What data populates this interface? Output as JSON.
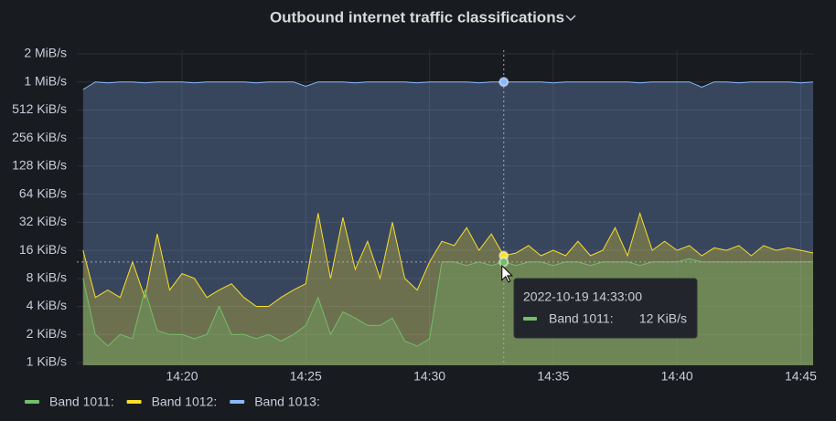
{
  "chart_data": {
    "type": "area",
    "title": "Outbound internet traffic classifications",
    "log_scale": 2,
    "grid": true,
    "x": [
      "14:16:00",
      "14:16:30",
      "14:17:00",
      "14:17:30",
      "14:18:00",
      "14:18:30",
      "14:19:00",
      "14:19:30",
      "14:20:00",
      "14:20:30",
      "14:21:00",
      "14:21:30",
      "14:22:00",
      "14:22:30",
      "14:23:00",
      "14:23:30",
      "14:24:00",
      "14:24:30",
      "14:25:00",
      "14:25:30",
      "14:26:00",
      "14:26:30",
      "14:27:00",
      "14:27:30",
      "14:28:00",
      "14:28:30",
      "14:29:00",
      "14:29:30",
      "14:30:00",
      "14:30:30",
      "14:31:00",
      "14:31:30",
      "14:32:00",
      "14:32:30",
      "14:33:00",
      "14:33:30",
      "14:34:00",
      "14:34:30",
      "14:35:00",
      "14:35:30",
      "14:36:00",
      "14:36:30",
      "14:37:00",
      "14:37:30",
      "14:38:00",
      "14:38:30",
      "14:39:00",
      "14:39:30",
      "14:40:00",
      "14:40:30",
      "14:41:00",
      "14:41:30",
      "14:42:00",
      "14:42:30",
      "14:43:00",
      "14:43:30",
      "14:44:00",
      "14:44:30",
      "14:45:00",
      "14:45:30"
    ],
    "xlim": [
      "14:15:45",
      "14:45:30"
    ],
    "xticks": [
      "14:20",
      "14:25",
      "14:30",
      "14:35",
      "14:40",
      "14:45"
    ],
    "ylim": [
      1,
      2048
    ],
    "yticks": [
      {
        "value": 1,
        "label": "1 KiB/s"
      },
      {
        "value": 2,
        "label": "2 KiB/s"
      },
      {
        "value": 4,
        "label": "4 KiB/s"
      },
      {
        "value": 8,
        "label": "8 KiB/s"
      },
      {
        "value": 16,
        "label": "16 KiB/s"
      },
      {
        "value": 32,
        "label": "32 KiB/s"
      },
      {
        "value": 64,
        "label": "64 KiB/s"
      },
      {
        "value": 128,
        "label": "128 KiB/s"
      },
      {
        "value": 256,
        "label": "256 KiB/s"
      },
      {
        "value": 512,
        "label": "512 KiB/s"
      },
      {
        "value": 1024,
        "label": "1 MiB/s"
      },
      {
        "value": 2048,
        "label": "2 MiB/s"
      }
    ],
    "series": [
      {
        "name": "Band 1011:",
        "color": "#73bf69",
        "values": [
          8,
          2,
          1.5,
          2,
          1.8,
          6,
          2.2,
          2,
          2,
          1.8,
          2,
          4,
          2,
          2,
          1.8,
          2,
          1.7,
          2,
          2.5,
          5,
          2,
          3.5,
          3,
          2.5,
          2.5,
          3,
          1.7,
          1.5,
          1.8,
          12,
          12,
          11,
          12,
          11,
          12,
          11,
          12,
          12,
          11,
          12,
          12,
          11,
          12,
          12,
          12,
          11,
          12,
          12,
          12,
          13,
          12,
          12,
          12,
          12,
          12,
          12,
          12,
          12,
          12,
          12
        ]
      },
      {
        "name": "Band 1012:",
        "color": "#fade2a",
        "values": [
          16,
          5,
          6,
          5,
          12,
          5,
          24,
          6,
          9,
          8,
          5,
          6,
          7,
          5,
          4,
          4,
          5,
          6,
          7,
          40,
          8,
          36,
          10,
          20,
          8,
          32,
          8,
          6,
          12,
          20,
          18,
          28,
          16,
          24,
          14,
          15,
          18,
          14,
          16,
          14,
          20,
          14,
          16,
          28,
          14,
          40,
          16,
          20,
          16,
          18,
          14,
          17,
          16,
          18,
          14,
          18,
          16,
          17,
          16,
          15
        ]
      },
      {
        "name": "Band 1013:",
        "color": "#8ab8ff",
        "values": [
          850,
          1024,
          1000,
          1024,
          1024,
          1000,
          1024,
          1024,
          1024,
          1000,
          1024,
          1024,
          1024,
          1024,
          1000,
          1024,
          1024,
          1024,
          920,
          1024,
          1024,
          1024,
          1000,
          1024,
          1024,
          1024,
          1024,
          1000,
          1024,
          1024,
          1024,
          1024,
          1000,
          1024,
          1024,
          1024,
          1024,
          1024,
          1000,
          1024,
          1024,
          1024,
          1024,
          1024,
          1024,
          1000,
          1024,
          1024,
          1024,
          1024,
          900,
          1024,
          1024,
          1000,
          1024,
          1024,
          1024,
          1024,
          1000,
          1024
        ]
      }
    ],
    "tooltip": {
      "time": "2022-10-19 14:33:00",
      "index": 34,
      "series": 0,
      "value": 12,
      "value_label": "12 KiB/s"
    }
  }
}
